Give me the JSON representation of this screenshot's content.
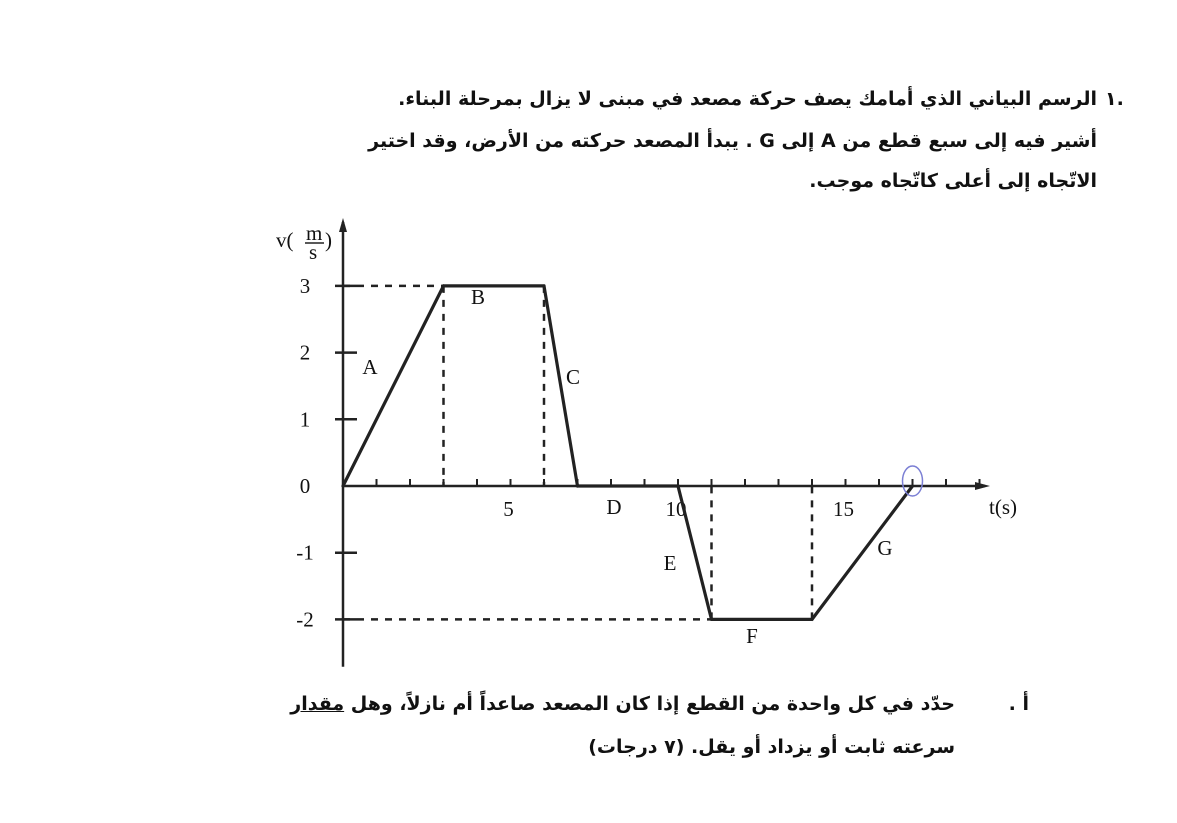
{
  "question": {
    "number": "١.",
    "lines": [
      "الرسم البياني الذي أمامك يصف حركة مصعد في مبنى لا يزال بمرحلة البناء.",
      "أشير فيه إلى سبع قطع من A إلى G . يبدأ المصعد حركته من الأرض، وقد اختير",
      "الاتّجاه إلى أعلى كاتّجاه موجب."
    ]
  },
  "part_a": {
    "label": "أ .",
    "line1_before": "حدّد في كل واحدة من القطع إذا كان المصعد صاعداً أم نازلاً، وهل ",
    "line1_underlined": "مقدار",
    "line2": "سرعته ثابت أو يزداد أو يقل.   (٧ درجات)"
  },
  "chart_data": {
    "type": "line",
    "xlabel": "t(s)",
    "ylabel_main": "v(",
    "ylabel_num": "m",
    "ylabel_den": "s",
    "ylabel_close": ")",
    "xlim": [
      0,
      19
    ],
    "ylim": [
      -2.5,
      3.5
    ],
    "x_tick_labels": [
      "5",
      "10",
      "15"
    ],
    "y_tick_labels": [
      "3",
      "2",
      "1",
      "0",
      "-1",
      "-2"
    ],
    "points": [
      [
        0,
        0
      ],
      [
        3,
        3
      ],
      [
        6,
        3
      ],
      [
        7,
        0
      ],
      [
        10,
        0
      ],
      [
        11,
        -2
      ],
      [
        14,
        -2
      ],
      [
        17,
        0
      ]
    ],
    "segments": [
      {
        "label": "A",
        "from": [
          0,
          0
        ],
        "to": [
          3,
          3
        ]
      },
      {
        "label": "B",
        "from": [
          3,
          3
        ],
        "to": [
          6,
          3
        ]
      },
      {
        "label": "C",
        "from": [
          6,
          3
        ],
        "to": [
          7,
          0
        ]
      },
      {
        "label": "D",
        "from": [
          7,
          0
        ],
        "to": [
          10,
          0
        ]
      },
      {
        "label": "E",
        "from": [
          10,
          0
        ],
        "to": [
          11,
          -2
        ]
      },
      {
        "label": "F",
        "from": [
          11,
          -2
        ],
        "to": [
          14,
          -2
        ]
      },
      {
        "label": "G",
        "from": [
          14,
          -2
        ],
        "to": [
          17,
          0
        ]
      }
    ],
    "circled_point": [
      17,
      0
    ],
    "circle_color": "#7b7fd4"
  }
}
